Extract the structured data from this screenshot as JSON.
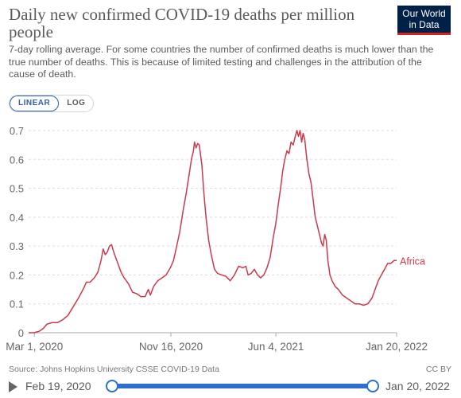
{
  "header": {
    "title": "Daily new confirmed COVID-19 deaths per million people",
    "subtitle": "7-day rolling average. For some countries the number of confirmed deaths is much lower than the true number of deaths. This is because of limited testing and challenges in the attribution of the cause of death.",
    "logo_line1": "Our World",
    "logo_line2": "in Data"
  },
  "controls": {
    "linear_label": "LINEAR",
    "log_label": "LOG"
  },
  "footer": {
    "source": "Source: Johns Hopkins University CSSE COVID-19 Data",
    "license": "CC BY"
  },
  "timeline": {
    "start_label": "Feb 19, 2020",
    "end_label": "Jan 20, 2022"
  },
  "colors": {
    "series": "#c93b4b",
    "grid": "#dddddd",
    "axis": "#aaaaaa",
    "slider": "#2d6fd1",
    "logo_bg": "#002147",
    "logo_accent": "#ce261e"
  },
  "chart_data": {
    "type": "line",
    "x_unit": "days since Feb 19, 2020",
    "xlim": [
      0,
      701
    ],
    "ylim": [
      0,
      0.7
    ],
    "yticks": [
      0,
      0.1,
      0.2,
      0.3,
      0.4,
      0.5,
      0.6,
      0.7
    ],
    "xticks": [
      {
        "label": "Mar 1, 2020",
        "x": 11
      },
      {
        "label": "Nov 16, 2020",
        "x": 271
      },
      {
        "label": "Jun 4, 2021",
        "x": 471
      },
      {
        "label": "Jan 20, 2022",
        "x": 701
      }
    ],
    "grid": true,
    "series": [
      {
        "name": "Africa",
        "points": [
          [
            0,
            0
          ],
          [
            10,
            0
          ],
          [
            20,
            0.005
          ],
          [
            28,
            0.015
          ],
          [
            35,
            0.03
          ],
          [
            45,
            0.035
          ],
          [
            55,
            0.035
          ],
          [
            65,
            0.045
          ],
          [
            75,
            0.06
          ],
          [
            85,
            0.09
          ],
          [
            95,
            0.12
          ],
          [
            105,
            0.155
          ],
          [
            110,
            0.175
          ],
          [
            117,
            0.175
          ],
          [
            125,
            0.19
          ],
          [
            132,
            0.21
          ],
          [
            138,
            0.25
          ],
          [
            142,
            0.29
          ],
          [
            146,
            0.27
          ],
          [
            150,
            0.28
          ],
          [
            154,
            0.3
          ],
          [
            158,
            0.305
          ],
          [
            162,
            0.28
          ],
          [
            166,
            0.26
          ],
          [
            170,
            0.24
          ],
          [
            176,
            0.21
          ],
          [
            182,
            0.19
          ],
          [
            190,
            0.17
          ],
          [
            198,
            0.14
          ],
          [
            206,
            0.135
          ],
          [
            214,
            0.125
          ],
          [
            222,
            0.125
          ],
          [
            228,
            0.15
          ],
          [
            232,
            0.13
          ],
          [
            238,
            0.16
          ],
          [
            246,
            0.18
          ],
          [
            254,
            0.19
          ],
          [
            262,
            0.2
          ],
          [
            270,
            0.225
          ],
          [
            276,
            0.25
          ],
          [
            282,
            0.3
          ],
          [
            288,
            0.35
          ],
          [
            294,
            0.42
          ],
          [
            300,
            0.48
          ],
          [
            306,
            0.55
          ],
          [
            310,
            0.6
          ],
          [
            314,
            0.63
          ],
          [
            316,
            0.66
          ],
          [
            319,
            0.64
          ],
          [
            322,
            0.655
          ],
          [
            325,
            0.65
          ],
          [
            330,
            0.58
          ],
          [
            334,
            0.48
          ],
          [
            338,
            0.4
          ],
          [
            343,
            0.32
          ],
          [
            348,
            0.27
          ],
          [
            354,
            0.22
          ],
          [
            360,
            0.205
          ],
          [
            368,
            0.2
          ],
          [
            376,
            0.195
          ],
          [
            384,
            0.18
          ],
          [
            392,
            0.2
          ],
          [
            400,
            0.23
          ],
          [
            408,
            0.225
          ],
          [
            414,
            0.23
          ],
          [
            418,
            0.2
          ],
          [
            424,
            0.205
          ],
          [
            430,
            0.22
          ],
          [
            436,
            0.2
          ],
          [
            442,
            0.19
          ],
          [
            448,
            0.2
          ],
          [
            454,
            0.225
          ],
          [
            460,
            0.26
          ],
          [
            466,
            0.33
          ],
          [
            471,
            0.38
          ],
          [
            476,
            0.45
          ],
          [
            480,
            0.5
          ],
          [
            484,
            0.56
          ],
          [
            488,
            0.6
          ],
          [
            492,
            0.63
          ],
          [
            496,
            0.62
          ],
          [
            500,
            0.66
          ],
          [
            504,
            0.65
          ],
          [
            508,
            0.68
          ],
          [
            511,
            0.7
          ],
          [
            514,
            0.68
          ],
          [
            517,
            0.7
          ],
          [
            520,
            0.66
          ],
          [
            523,
            0.69
          ],
          [
            526,
            0.67
          ],
          [
            530,
            0.6
          ],
          [
            534,
            0.55
          ],
          [
            538,
            0.52
          ],
          [
            542,
            0.46
          ],
          [
            546,
            0.4
          ],
          [
            550,
            0.37
          ],
          [
            554,
            0.34
          ],
          [
            558,
            0.31
          ],
          [
            561,
            0.3
          ],
          [
            564,
            0.34
          ],
          [
            567,
            0.32
          ],
          [
            570,
            0.25
          ],
          [
            574,
            0.2
          ],
          [
            578,
            0.18
          ],
          [
            584,
            0.16
          ],
          [
            590,
            0.15
          ],
          [
            598,
            0.13
          ],
          [
            606,
            0.12
          ],
          [
            614,
            0.11
          ],
          [
            622,
            0.1
          ],
          [
            630,
            0.1
          ],
          [
            638,
            0.095
          ],
          [
            646,
            0.1
          ],
          [
            654,
            0.12
          ],
          [
            660,
            0.15
          ],
          [
            666,
            0.18
          ],
          [
            672,
            0.2
          ],
          [
            678,
            0.22
          ],
          [
            684,
            0.24
          ],
          [
            690,
            0.24
          ],
          [
            696,
            0.25
          ],
          [
            701,
            0.25
          ]
        ]
      }
    ]
  }
}
